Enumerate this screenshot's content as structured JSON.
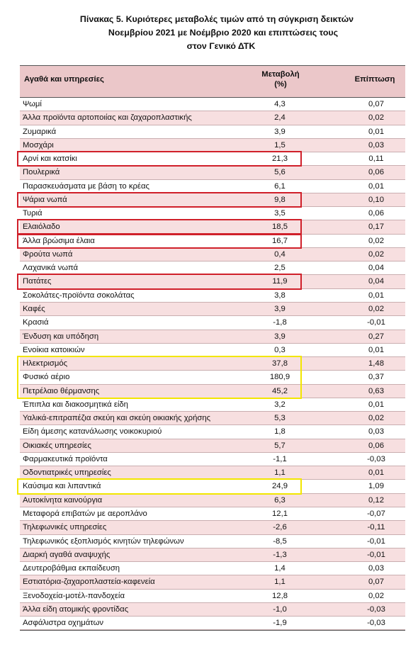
{
  "title_lines": [
    "Πίνακας  5. Κυριότερες μεταβολές τιμών από τη σύγκριση δεικτών",
    "Νοεμβρίου 2021 με Νοέμβριο 2020 και επιπτώσεις τους",
    "στον Γενικό ΔΤΚ"
  ],
  "header": {
    "col_item": "Αγαθά και υπηρεσίες",
    "col_change": "Μεταβολή",
    "col_change_unit": "(%)",
    "col_impact": "Επίπτωση"
  },
  "highlight_colors": {
    "red": "#d0202a",
    "yellow": "#f2e600"
  },
  "rows": [
    {
      "name": "Ψωμί",
      "change": "4,3",
      "impact": "0,07"
    },
    {
      "name": "Άλλα προϊόντα αρτοποιίας και ζαχαροπλαστικής",
      "change": "2,4",
      "impact": "0,02"
    },
    {
      "name": "Ζυμαρικά",
      "change": "3,9",
      "impact": "0,01"
    },
    {
      "name": "Μοσχάρι",
      "change": "1,5",
      "impact": "0,03"
    },
    {
      "name": "Αρνί και κατσίκι",
      "change": "21,3",
      "impact": "0,11",
      "highlight": "red"
    },
    {
      "name": "Πουλερικά",
      "change": "5,6",
      "impact": "0,06"
    },
    {
      "name": "Παρασκευάσματα με βάση το κρέας",
      "change": "6,1",
      "impact": "0,01"
    },
    {
      "name": "Ψάρια νωπά",
      "change": "9,8",
      "impact": "0,10",
      "highlight": "red"
    },
    {
      "name": "Τυριά",
      "change": "3,5",
      "impact": "0,06"
    },
    {
      "name": "Ελαιόλαδο",
      "change": "18,5",
      "impact": "0,17",
      "highlight": "red"
    },
    {
      "name": "Άλλα βρώσιμα έλαια",
      "change": "16,7",
      "impact": "0,02",
      "highlight": "red"
    },
    {
      "name": "Φρούτα νωπά",
      "change": "0,4",
      "impact": "0,02"
    },
    {
      "name": "Λαχανικά νωπά",
      "change": "2,5",
      "impact": "0,04"
    },
    {
      "name": "Πατάτες",
      "change": "11,9",
      "impact": "0,04",
      "highlight": "red"
    },
    {
      "name": "Σοκολάτες-προϊόντα σοκολάτας",
      "change": "3,8",
      "impact": "0,01"
    },
    {
      "name": "Καφές",
      "change": "3,9",
      "impact": "0,02"
    },
    {
      "name": "Κρασιά",
      "change": "-1,8",
      "impact": "-0,01"
    },
    {
      "name": "Ένδυση και υπόδηση",
      "change": "3,9",
      "impact": "0,27"
    },
    {
      "name": "Ενοίκια κατοικιών",
      "change": "0,3",
      "impact": "0,01"
    },
    {
      "name": "Ηλεκτρισμός",
      "change": "37,8",
      "impact": "1,48",
      "highlight": "yellow"
    },
    {
      "name": "Φυσικό αέριο",
      "change": "180,9",
      "impact": "0,37",
      "highlight": "yellow"
    },
    {
      "name": "Πετρέλαιο θέρμανσης",
      "change": "45,2",
      "impact": "0,63",
      "highlight": "yellow"
    },
    {
      "name": "Έπιπλα και διακοσμητικά είδη",
      "change": "3,2",
      "impact": "0,01"
    },
    {
      "name": "Υαλικά-επιτραπέζια σκεύη και σκεύη οικιακής χρήσης",
      "change": "5,3",
      "impact": "0,02"
    },
    {
      "name": "Είδη άμεσης κατανάλωσης νοικοκυριού",
      "change": "1,8",
      "impact": "0,03"
    },
    {
      "name": "Οικιακές υπηρεσίες",
      "change": "5,7",
      "impact": "0,06"
    },
    {
      "name": "Φαρμακευτικά προϊόντα",
      "change": "-1,1",
      "impact": "-0,03"
    },
    {
      "name": "Οδοντιατρικές υπηρεσίες",
      "change": "1,1",
      "impact": "0,01"
    },
    {
      "name": "Καύσιμα και λιπαντικά",
      "change": "24,9",
      "impact": "1,09",
      "highlight": "yellow"
    },
    {
      "name": "Αυτοκίνητα καινούργια",
      "change": "6,3",
      "impact": "0,12"
    },
    {
      "name": "Μεταφορά επιβατών με αεροπλάνο",
      "change": "12,1",
      "impact": "-0,07"
    },
    {
      "name": "Τηλεφωνικές υπηρεσίες",
      "change": "-2,6",
      "impact": "-0,11"
    },
    {
      "name": "Τηλεφωνικός εξοπλισμός κινητών τηλεφώνων",
      "change": "-8,5",
      "impact": "-0,01"
    },
    {
      "name": "Διαρκή αγαθά αναψυχής",
      "change": "-1,3",
      "impact": "-0,01"
    },
    {
      "name": "Δευτεροβάθμια εκπαίδευση",
      "change": "1,4",
      "impact": "0,03"
    },
    {
      "name": "Εστιατόρια-ζαχαροπλαστεία-καφενεία",
      "change": "1,1",
      "impact": "0,07"
    },
    {
      "name": "Ξενοδοχεία-μοτέλ-πανδοχεία",
      "change": "12,8",
      "impact": "0,02"
    },
    {
      "name": "Άλλα είδη ατομικής φροντίδας",
      "change": "-1,0",
      "impact": "-0,03"
    },
    {
      "name": "Ασφάλιστρα οχημάτων",
      "change": "-1,9",
      "impact": "-0,03"
    }
  ]
}
